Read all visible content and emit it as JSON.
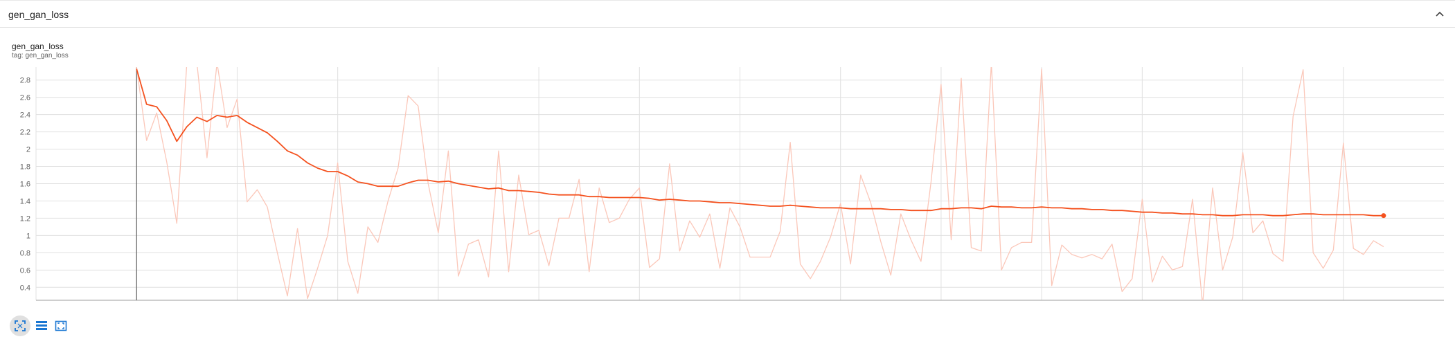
{
  "header": {
    "title": "gen_gan_loss"
  },
  "card": {
    "title": "gen_gan_loss",
    "tag": "tag: gen_gan_loss"
  },
  "toolbar": {
    "icons": [
      "fit-domain-icon",
      "data-table-icon",
      "fullscreen-icon"
    ]
  },
  "colors": {
    "smoothed": "#f4511e",
    "raw": "#fbc7b9",
    "grid": "#e0e0e0",
    "axis": "#9e9e9e"
  },
  "chart_data": {
    "type": "line",
    "xlabel": "",
    "ylabel": "",
    "xlim": [
      -10,
      130
    ],
    "ylim": [
      0.25,
      2.95
    ],
    "xticks": [
      0,
      10,
      20,
      30,
      40,
      50,
      60,
      70,
      80,
      90,
      100,
      110,
      120
    ],
    "yticks": [
      0.4,
      0.6,
      0.8,
      1,
      1.2,
      1.4,
      1.6,
      1.8,
      2,
      2.2,
      2.4,
      2.6,
      2.8
    ],
    "grid": true,
    "series": [
      {
        "x": [
          0,
          1,
          2,
          3,
          4,
          5,
          6,
          7,
          8,
          9,
          10,
          11,
          12,
          13,
          14,
          15,
          16,
          17,
          18,
          19,
          20,
          21,
          22,
          23,
          24,
          25,
          26,
          27,
          28,
          29,
          30,
          31,
          32,
          33,
          34,
          35,
          36,
          37,
          38,
          39,
          40,
          41,
          42,
          43,
          44,
          45,
          46,
          47,
          48,
          49,
          50,
          51,
          52,
          53,
          54,
          55,
          56,
          57,
          58,
          59,
          60,
          61,
          62,
          63,
          64,
          65,
          66,
          67,
          68,
          69,
          70,
          71,
          72,
          73,
          74,
          75,
          76,
          77,
          78,
          79,
          80,
          81,
          82,
          83,
          84,
          85,
          86,
          87,
          88,
          89,
          90,
          91,
          92,
          93,
          94,
          95,
          96,
          97,
          98,
          99,
          100,
          101,
          102,
          103,
          104,
          105,
          106,
          107,
          108,
          109,
          110,
          111,
          112,
          113,
          114,
          115,
          116,
          117,
          118,
          119,
          120,
          121,
          122,
          123,
          124
        ],
        "values": [
          2.95,
          2.1,
          2.42,
          1.85,
          1.14,
          3.0,
          3.0,
          1.9,
          3.0,
          2.25,
          2.58,
          1.39,
          1.53,
          1.33,
          0.8,
          0.3,
          1.08,
          0.27,
          0.62,
          1.0,
          1.84,
          0.7,
          0.33,
          1.1,
          0.92,
          1.4,
          1.78,
          2.62,
          2.5,
          1.6,
          1.03,
          1.98,
          0.53,
          0.9,
          0.95,
          0.52,
          1.98,
          0.58,
          1.7,
          1.01,
          1.06,
          0.65,
          1.2,
          1.2,
          1.65,
          0.58,
          1.55,
          1.15,
          1.2,
          1.42,
          1.55,
          0.63,
          0.73,
          1.83,
          0.82,
          1.17,
          0.98,
          1.25,
          0.62,
          1.32,
          1.1,
          0.75,
          0.75,
          0.75,
          1.05,
          2.08,
          0.67,
          0.5,
          0.7,
          0.98,
          1.37,
          0.67,
          1.7,
          1.38,
          0.93,
          0.54,
          1.25,
          0.95,
          0.7,
          1.62,
          2.75,
          0.95,
          2.82,
          0.86,
          0.82,
          3.0,
          0.6,
          0.86,
          0.92,
          0.92,
          2.93,
          0.42,
          0.89,
          0.78,
          0.74,
          0.78,
          0.73,
          0.9,
          0.35,
          0.5,
          1.42,
          0.46,
          0.76,
          0.6,
          0.64,
          1.42,
          0.2,
          1.55,
          0.6,
          0.98,
          1.96,
          1.03,
          1.17,
          0.79,
          0.7,
          2.38,
          2.92,
          0.8,
          0.62,
          0.83,
          2.07,
          0.85,
          0.78,
          0.94,
          0.87
        ]
      },
      {
        "x": [
          0,
          1,
          2,
          3,
          4,
          5,
          6,
          7,
          8,
          9,
          10,
          11,
          12,
          13,
          14,
          15,
          16,
          17,
          18,
          19,
          20,
          21,
          22,
          23,
          24,
          25,
          26,
          27,
          28,
          29,
          30,
          31,
          32,
          33,
          34,
          35,
          36,
          37,
          38,
          39,
          40,
          41,
          42,
          43,
          44,
          45,
          46,
          47,
          48,
          49,
          50,
          51,
          52,
          53,
          54,
          55,
          56,
          57,
          58,
          59,
          60,
          61,
          62,
          63,
          64,
          65,
          66,
          67,
          68,
          69,
          70,
          71,
          72,
          73,
          74,
          75,
          76,
          77,
          78,
          79,
          80,
          81,
          82,
          83,
          84,
          85,
          86,
          87,
          88,
          89,
          90,
          91,
          92,
          93,
          94,
          95,
          96,
          97,
          98,
          99,
          100,
          101,
          102,
          103,
          104,
          105,
          106,
          107,
          108,
          109,
          110,
          111,
          112,
          113,
          114,
          115,
          116,
          117,
          118,
          119,
          120,
          121,
          122,
          123,
          124
        ],
        "values": [
          2.93,
          2.52,
          2.49,
          2.33,
          2.09,
          2.26,
          2.37,
          2.32,
          2.39,
          2.37,
          2.39,
          2.31,
          2.25,
          2.19,
          2.09,
          1.98,
          1.93,
          1.84,
          1.78,
          1.74,
          1.74,
          1.69,
          1.62,
          1.6,
          1.57,
          1.57,
          1.57,
          1.61,
          1.64,
          1.64,
          1.62,
          1.63,
          1.6,
          1.58,
          1.56,
          1.54,
          1.55,
          1.52,
          1.52,
          1.51,
          1.5,
          1.48,
          1.47,
          1.47,
          1.47,
          1.45,
          1.45,
          1.44,
          1.44,
          1.44,
          1.44,
          1.43,
          1.41,
          1.42,
          1.41,
          1.4,
          1.4,
          1.39,
          1.38,
          1.38,
          1.37,
          1.36,
          1.35,
          1.34,
          1.34,
          1.35,
          1.34,
          1.33,
          1.32,
          1.32,
          1.32,
          1.31,
          1.31,
          1.31,
          1.31,
          1.3,
          1.3,
          1.29,
          1.29,
          1.29,
          1.31,
          1.31,
          1.32,
          1.32,
          1.31,
          1.34,
          1.33,
          1.33,
          1.32,
          1.32,
          1.33,
          1.32,
          1.32,
          1.31,
          1.31,
          1.3,
          1.3,
          1.29,
          1.29,
          1.28,
          1.27,
          1.27,
          1.26,
          1.26,
          1.25,
          1.25,
          1.24,
          1.24,
          1.23,
          1.23,
          1.24,
          1.24,
          1.24,
          1.23,
          1.23,
          1.24,
          1.25,
          1.25,
          1.24,
          1.24,
          1.24,
          1.24,
          1.24,
          1.23,
          1.23
        ]
      }
    ]
  }
}
